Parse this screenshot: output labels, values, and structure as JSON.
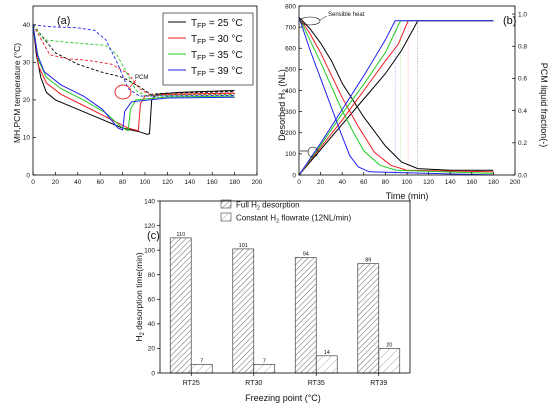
{
  "colors": {
    "series": [
      "#000000",
      "#ee1c24",
      "#22cc22",
      "#2222ee"
    ],
    "bar_edge": "#444444",
    "annotation": "#ee1c24"
  },
  "chart_data": [
    {
      "panel": "(a)",
      "type": "line",
      "ylabel": "MH,PCM temperature (°C)",
      "xlabel": "",
      "xlim": [
        0,
        200
      ],
      "ylim": [
        0,
        45
      ],
      "xticks": [
        "0",
        "20",
        "40",
        "60",
        "80",
        "100",
        "120",
        "140",
        "160",
        "180",
        "200"
      ],
      "yticks": [
        "0",
        "10",
        "20",
        "30",
        "40"
      ],
      "legend_position": "top-right",
      "annotation": "PCM",
      "series": [
        {
          "name": "T_FP = 25 °C",
          "legend_main": "T",
          "legend_sub": "FP",
          "legend_rest": " = 25 °C",
          "mh": [
            [
              0,
              40
            ],
            [
              3,
              32
            ],
            [
              7,
              26
            ],
            [
              12,
              22
            ],
            [
              20,
              20
            ],
            [
              40,
              17.5
            ],
            [
              60,
              15
            ],
            [
              80,
              12.5
            ],
            [
              95,
              11.5
            ],
            [
              102,
              10.8
            ],
            [
              104,
              11
            ],
            [
              106,
              20
            ],
            [
              110,
              21.5
            ],
            [
              130,
              22
            ],
            [
              180,
              22.5
            ]
          ],
          "pcm": [
            [
              0,
              40
            ],
            [
              20,
              32.5
            ],
            [
              40,
              29.5
            ],
            [
              60,
              27.5
            ],
            [
              80,
              26
            ],
            [
              95,
              23.5
            ],
            [
              105,
              21.5
            ],
            [
              120,
              21.8
            ],
            [
              180,
              22.2
            ]
          ]
        },
        {
          "name": "T_FP = 30 °C",
          "legend_main": "T",
          "legend_sub": "FP",
          "legend_rest": " = 30 °C",
          "mh": [
            [
              0,
              40
            ],
            [
              5,
              29
            ],
            [
              12,
              24.5
            ],
            [
              25,
              21.5
            ],
            [
              45,
              18.5
            ],
            [
              65,
              15.5
            ],
            [
              85,
              12.5
            ],
            [
              94,
              11.8
            ],
            [
              96,
              19
            ],
            [
              100,
              21
            ],
            [
              120,
              21.5
            ],
            [
              180,
              21.8
            ]
          ],
          "pcm": [
            [
              0,
              40
            ],
            [
              15,
              32
            ],
            [
              30,
              31
            ],
            [
              50,
              30.5
            ],
            [
              70,
              29.5
            ],
            [
              85,
              27
            ],
            [
              95,
              23
            ],
            [
              105,
              21.3
            ],
            [
              180,
              21.6
            ]
          ]
        },
        {
          "name": "T_FP = 35 °C",
          "legend_main": "T",
          "legend_sub": "FP",
          "legend_rest": " = 35 °C",
          "mh": [
            [
              0,
              40
            ],
            [
              5,
              30.5
            ],
            [
              12,
              26
            ],
            [
              25,
              23
            ],
            [
              45,
              20
            ],
            [
              65,
              16.5
            ],
            [
              80,
              12.5
            ],
            [
              85,
              11.8
            ],
            [
              87,
              17.5
            ],
            [
              92,
              20
            ],
            [
              120,
              20.8
            ],
            [
              180,
              21
            ]
          ],
          "pcm": [
            [
              0,
              40
            ],
            [
              10,
              36
            ],
            [
              25,
              35.5
            ],
            [
              45,
              35
            ],
            [
              65,
              34.5
            ],
            [
              75,
              32
            ],
            [
              85,
              26.5
            ],
            [
              92,
              22.5
            ],
            [
              100,
              21.2
            ],
            [
              180,
              21.4
            ]
          ]
        },
        {
          "name": "T_FP = 39 °C",
          "legend_main": "T",
          "legend_sub": "FP",
          "legend_rest": " = 39 °C",
          "mh": [
            [
              0,
              40
            ],
            [
              4,
              32
            ],
            [
              10,
              27.5
            ],
            [
              25,
              24
            ],
            [
              45,
              21
            ],
            [
              62,
              17.5
            ],
            [
              76,
              12.5
            ],
            [
              80,
              12
            ],
            [
              82,
              17
            ],
            [
              88,
              19.5
            ],
            [
              120,
              20.5
            ],
            [
              180,
              20.7
            ]
          ],
          "pcm": [
            [
              0,
              40
            ],
            [
              15,
              39.5
            ],
            [
              40,
              39.2
            ],
            [
              55,
              38.5
            ],
            [
              65,
              36
            ],
            [
              75,
              30
            ],
            [
              85,
              23
            ],
            [
              95,
              21
            ],
            [
              180,
              21.2
            ]
          ]
        }
      ]
    },
    {
      "panel": "(b)",
      "type": "line",
      "ylabel": "Desorbed H₂ (NL)",
      "ylabel_main": "Desorbed H",
      "ylabel_sub": "2",
      "ylabel_rest": " (NL)",
      "y2label": "PCM liquid fraction(-)",
      "xlabel": "Time (min)",
      "xlim": [
        0,
        200
      ],
      "ylim": [
        0,
        800
      ],
      "y2lim": [
        0,
        1.05
      ],
      "xticks": [
        "0",
        "20",
        "40",
        "60",
        "80",
        "100",
        "120",
        "140",
        "160",
        "180",
        "200"
      ],
      "yticks": [
        "0",
        "100",
        "200",
        "300",
        "400",
        "500",
        "600",
        "700",
        "800"
      ],
      "y2ticks": [
        "0.0",
        "0.2",
        "0.4",
        "0.6",
        "0.8",
        "1.0"
      ],
      "annotation": "Sensible heat",
      "series": [
        {
          "name": "T_FP = 25 °C",
          "desorbed": [
            [
              0,
              0
            ],
            [
              20,
              120
            ],
            [
              40,
              240
            ],
            [
              60,
              360
            ],
            [
              80,
              480
            ],
            [
              95,
              590
            ],
            [
              110,
              730
            ],
            [
              180,
              730
            ]
          ],
          "fraction": [
            [
              0,
              0.98
            ],
            [
              3,
              0.96
            ],
            [
              10,
              0.91
            ],
            [
              20,
              0.82
            ],
            [
              30,
              0.71
            ],
            [
              40,
              0.57
            ],
            [
              60,
              0.36
            ],
            [
              80,
              0.18
            ],
            [
              95,
              0.08
            ],
            [
              110,
              0.04
            ],
            [
              140,
              0.03
            ],
            [
              180,
              0.03
            ]
          ]
        },
        {
          "name": "T_FP = 30 °C",
          "desorbed": [
            [
              0,
              0
            ],
            [
              20,
              130
            ],
            [
              40,
              260
            ],
            [
              60,
              400
            ],
            [
              80,
              540
            ],
            [
              92,
              620
            ],
            [
              101,
              730
            ],
            [
              180,
              730
            ]
          ],
          "fraction": [
            [
              0,
              0.98
            ],
            [
              3,
              0.95
            ],
            [
              10,
              0.88
            ],
            [
              20,
              0.76
            ],
            [
              30,
              0.62
            ],
            [
              40,
              0.48
            ],
            [
              55,
              0.3
            ],
            [
              70,
              0.14
            ],
            [
              85,
              0.06
            ],
            [
              100,
              0.03
            ],
            [
              180,
              0.02
            ]
          ]
        },
        {
          "name": "T_FP = 35 °C",
          "desorbed": [
            [
              0,
              0
            ],
            [
              20,
              140
            ],
            [
              40,
              290
            ],
            [
              60,
              430
            ],
            [
              80,
              580
            ],
            [
              94,
              730
            ],
            [
              180,
              730
            ]
          ],
          "fraction": [
            [
              0,
              0.98
            ],
            [
              3,
              0.94
            ],
            [
              10,
              0.84
            ],
            [
              20,
              0.7
            ],
            [
              30,
              0.55
            ],
            [
              40,
              0.4
            ],
            [
              50,
              0.27
            ],
            [
              60,
              0.15
            ],
            [
              75,
              0.06
            ],
            [
              90,
              0.03
            ],
            [
              180,
              0.01
            ]
          ]
        },
        {
          "name": "T_FP = 39 °C",
          "desorbed": [
            [
              0,
              0
            ],
            [
              20,
              150
            ],
            [
              40,
              310
            ],
            [
              60,
              470
            ],
            [
              80,
              640
            ],
            [
              89,
              730
            ],
            [
              180,
              730
            ]
          ],
          "fraction": [
            [
              0,
              0.98
            ],
            [
              2,
              0.94
            ],
            [
              10,
              0.78
            ],
            [
              20,
              0.6
            ],
            [
              30,
              0.42
            ],
            [
              40,
              0.24
            ],
            [
              47,
              0.12
            ],
            [
              55,
              0.05
            ],
            [
              65,
              0.02
            ],
            [
              180,
              0.0
            ]
          ]
        }
      ]
    },
    {
      "panel": "(c)",
      "type": "bar",
      "xlabel": "Freezing point (°C)",
      "ylabel": "H₂ desorption time(min)",
      "ylabel_main": "H",
      "ylabel_sub": "2",
      "ylabel_rest": " desorption time(min)",
      "ylim": [
        0,
        140
      ],
      "yticks": [
        "0",
        "20",
        "40",
        "60",
        "80",
        "100",
        "120",
        "140"
      ],
      "categories": [
        "RT25",
        "RT30",
        "RT35",
        "RT39"
      ],
      "legend_position": "top",
      "series": [
        {
          "name": "Full H₂ desorption",
          "legend_main": "Full H",
          "legend_sub": "2",
          "legend_rest": " desorption",
          "values": [
            110,
            101,
            94,
            89
          ],
          "labels": [
            "110",
            "101",
            "94",
            "89"
          ]
        },
        {
          "name": "Constant H₂ flowrate (12NL/min)",
          "legend_main": "Constant H",
          "legend_sub": "2",
          "legend_rest": " flowrate (12NL/min)",
          "values": [
            7,
            7,
            14,
            20
          ],
          "labels": [
            "7",
            "7",
            "14",
            "20"
          ]
        }
      ]
    }
  ]
}
